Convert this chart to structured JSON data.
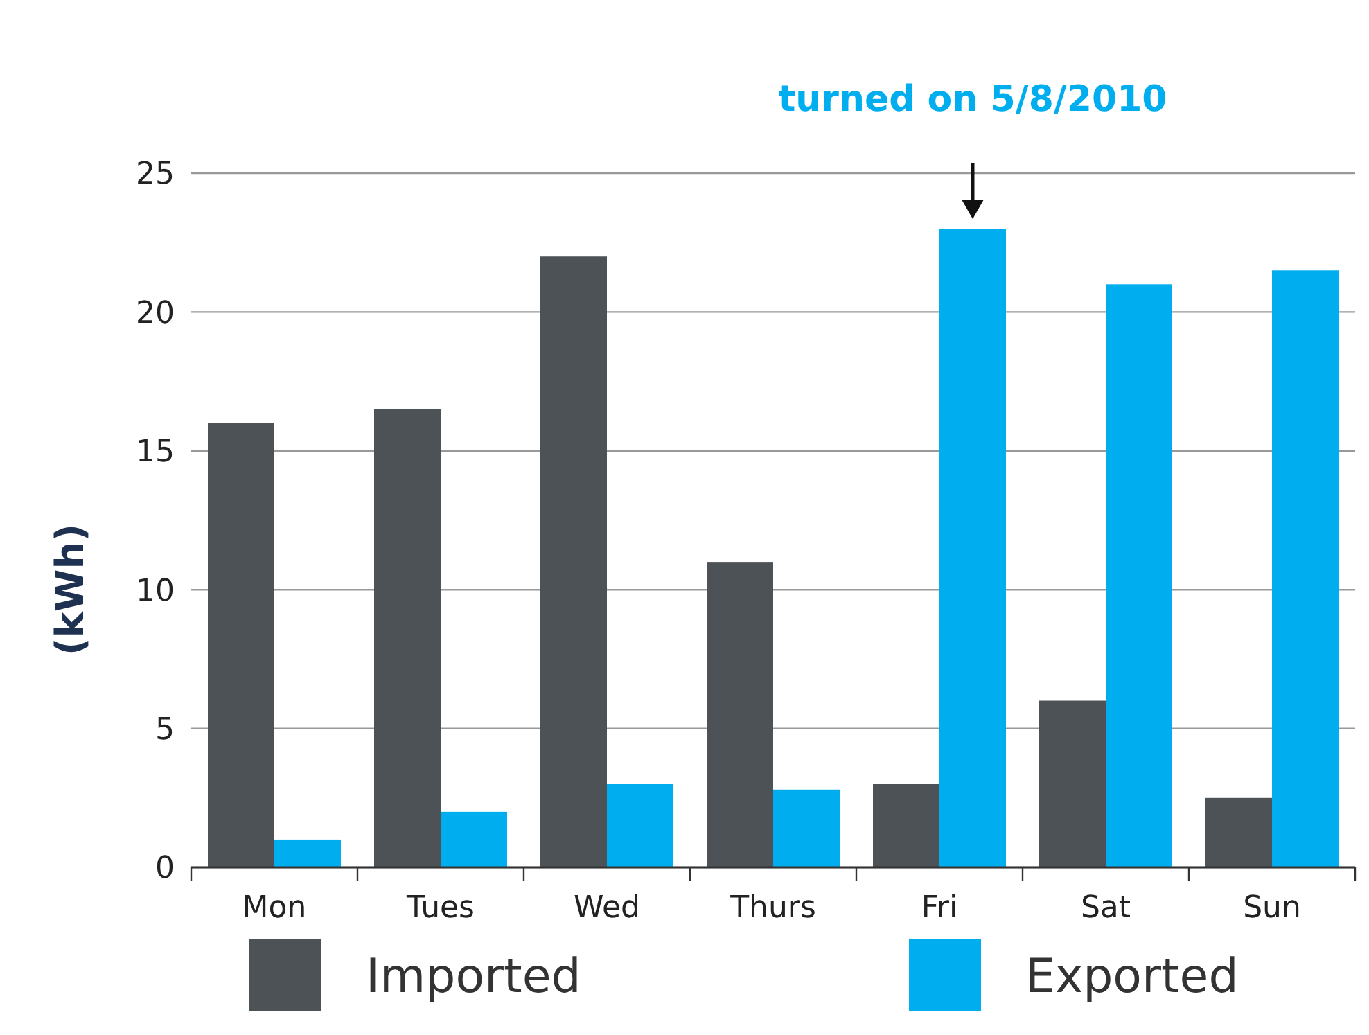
{
  "chart_data": {
    "type": "bar",
    "ylabel": "(kWh)",
    "categories": [
      "Mon",
      "Tues",
      "Wed",
      "Thurs",
      "Fri",
      "Sat",
      "Sun"
    ],
    "series": [
      {
        "name": "Imported",
        "color": "#4d5257",
        "values": [
          16,
          16.5,
          22,
          11,
          3,
          6,
          2.5
        ]
      },
      {
        "name": "Exported",
        "color": "#00aeef",
        "values": [
          1,
          2,
          3,
          2.8,
          23,
          21,
          21.5
        ]
      }
    ],
    "ylim": [
      0,
      25
    ],
    "yticks": [
      0,
      5,
      10,
      15,
      20,
      25
    ],
    "grid": "y",
    "legend": "bottom",
    "annotations": [
      "turned on 5/8/2010"
    ]
  }
}
